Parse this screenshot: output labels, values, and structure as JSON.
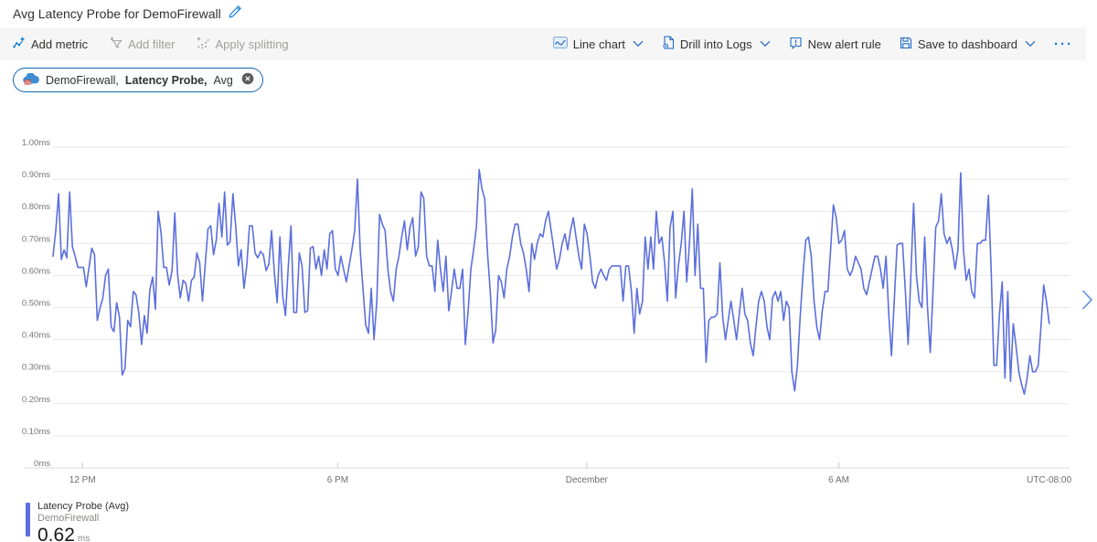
{
  "header": {
    "title": "Avg Latency Probe for DemoFirewall"
  },
  "toolbar": {
    "left": [
      {
        "label": "Add metric",
        "icon": "add-metric-icon",
        "enabled": true
      },
      {
        "label": "Add filter",
        "icon": "add-filter-icon",
        "enabled": false
      },
      {
        "label": "Apply splitting",
        "icon": "apply-splitting-icon",
        "enabled": false
      }
    ],
    "right": [
      {
        "label": "Line chart",
        "icon": "line-chart-icon",
        "has_dropdown": true
      },
      {
        "label": "Drill into Logs",
        "icon": "drill-logs-icon",
        "has_dropdown": true
      },
      {
        "label": "New alert rule",
        "icon": "new-alert-icon",
        "has_dropdown": false
      },
      {
        "label": "Save to dashboard",
        "icon": "save-icon",
        "has_dropdown": true
      }
    ],
    "more_label": "···"
  },
  "metric_pill": {
    "resource": "DemoFirewall,",
    "metric": "Latency Probe,",
    "aggregation": "Avg"
  },
  "legend": {
    "series": "Latency Probe (Avg)",
    "resource": "DemoFirewall",
    "value": "0.62",
    "unit": "ms",
    "color": "#5c6fdd"
  },
  "chart_data": {
    "type": "line",
    "title": "Avg Latency Probe for DemoFirewall",
    "unit": "ms",
    "ylabel": "",
    "xlabel": "",
    "ylim": [
      0,
      1.0
    ],
    "grid": true,
    "legend_position": "bottom-left",
    "line_color": "#5c6fdd",
    "grid_color": "#e8e8e8",
    "axis_color": "#d8d8d8",
    "tick_label_color": "#767574",
    "yticks": [
      {
        "label": "1.00ms",
        "value": 1.0
      },
      {
        "label": "0.90ms",
        "value": 0.9
      },
      {
        "label": "0.80ms",
        "value": 0.8
      },
      {
        "label": "0.70ms",
        "value": 0.7
      },
      {
        "label": "0.60ms",
        "value": 0.6
      },
      {
        "label": "0.50ms",
        "value": 0.5
      },
      {
        "label": "0.40ms",
        "value": 0.4
      },
      {
        "label": "0.30ms",
        "value": 0.3
      },
      {
        "label": "0.20ms",
        "value": 0.2
      },
      {
        "label": "0.10ms",
        "value": 0.1
      },
      {
        "label": "0ms",
        "value": 0.0
      }
    ],
    "xticks": [
      {
        "label": "12 PM",
        "pos": 0.029
      },
      {
        "label": "6 PM",
        "pos": 0.28
      },
      {
        "label": "December",
        "pos": 0.525
      },
      {
        "label": "6 AM",
        "pos": 0.773
      }
    ],
    "x_axis_right_label": "UTC-08:00",
    "series_name": "Latency Probe (Avg)",
    "resource": "DemoFirewall",
    "aggregation": "Avg",
    "x_end_frac": 0.98,
    "values_ms": [
      0.66,
      0.74,
      0.855,
      0.65,
      0.68,
      0.655,
      0.86,
      0.69,
      0.66,
      0.625,
      0.625,
      0.625,
      0.565,
      0.625,
      0.685,
      0.665,
      0.46,
      0.5,
      0.53,
      0.6,
      0.62,
      0.44,
      0.425,
      0.515,
      0.47,
      0.29,
      0.31,
      0.46,
      0.44,
      0.55,
      0.54,
      0.485,
      0.385,
      0.475,
      0.42,
      0.555,
      0.595,
      0.495,
      0.8,
      0.735,
      0.625,
      0.625,
      0.57,
      0.615,
      0.795,
      0.605,
      0.53,
      0.585,
      0.575,
      0.52,
      0.585,
      0.595,
      0.67,
      0.64,
      0.52,
      0.635,
      0.745,
      0.755,
      0.665,
      0.71,
      0.825,
      0.72,
      0.86,
      0.695,
      0.705,
      0.855,
      0.755,
      0.63,
      0.68,
      0.56,
      0.63,
      0.755,
      0.755,
      0.67,
      0.655,
      0.675,
      0.665,
      0.615,
      0.635,
      0.74,
      0.605,
      0.515,
      0.72,
      0.535,
      0.475,
      0.625,
      0.755,
      0.485,
      0.485,
      0.67,
      0.63,
      0.485,
      0.49,
      0.685,
      0.69,
      0.62,
      0.66,
      0.6,
      0.68,
      0.62,
      0.73,
      0.74,
      0.62,
      0.6,
      0.66,
      0.62,
      0.58,
      0.63,
      0.68,
      0.74,
      0.9,
      0.68,
      0.56,
      0.445,
      0.42,
      0.56,
      0.4,
      0.52,
      0.79,
      0.76,
      0.74,
      0.62,
      0.55,
      0.52,
      0.62,
      0.66,
      0.72,
      0.77,
      0.68,
      0.75,
      0.78,
      0.66,
      0.69,
      0.86,
      0.84,
      0.66,
      0.63,
      0.63,
      0.55,
      0.71,
      0.62,
      0.55,
      0.66,
      0.49,
      0.55,
      0.62,
      0.56,
      0.56,
      0.62,
      0.385,
      0.49,
      0.62,
      0.68,
      0.75,
      0.93,
      0.87,
      0.84,
      0.67,
      0.55,
      0.39,
      0.43,
      0.6,
      0.58,
      0.53,
      0.62,
      0.66,
      0.72,
      0.76,
      0.76,
      0.7,
      0.67,
      0.62,
      0.55,
      0.7,
      0.65,
      0.7,
      0.73,
      0.72,
      0.77,
      0.8,
      0.74,
      0.68,
      0.62,
      0.65,
      0.7,
      0.73,
      0.68,
      0.74,
      0.78,
      0.72,
      0.66,
      0.62,
      0.76,
      0.73,
      0.66,
      0.58,
      0.56,
      0.6,
      0.62,
      0.6,
      0.585,
      0.62,
      0.63,
      0.63,
      0.63,
      0.63,
      0.52,
      0.63,
      0.63,
      0.55,
      0.42,
      0.56,
      0.48,
      0.52,
      0.72,
      0.62,
      0.72,
      0.62,
      0.8,
      0.7,
      0.72,
      0.64,
      0.52,
      0.75,
      0.8,
      0.53,
      0.63,
      0.7,
      0.8,
      0.58,
      0.7,
      0.87,
      0.6,
      0.76,
      0.56,
      0.56,
      0.33,
      0.46,
      0.47,
      0.47,
      0.48,
      0.64,
      0.47,
      0.4,
      0.46,
      0.52,
      0.46,
      0.4,
      0.48,
      0.56,
      0.48,
      0.46,
      0.39,
      0.35,
      0.44,
      0.52,
      0.55,
      0.52,
      0.44,
      0.4,
      0.53,
      0.55,
      0.52,
      0.55,
      0.46,
      0.52,
      0.5,
      0.3,
      0.24,
      0.32,
      0.47,
      0.6,
      0.71,
      0.72,
      0.66,
      0.52,
      0.44,
      0.4,
      0.49,
      0.55,
      0.55,
      0.68,
      0.82,
      0.78,
      0.7,
      0.71,
      0.74,
      0.62,
      0.6,
      0.62,
      0.66,
      0.64,
      0.62,
      0.56,
      0.54,
      0.58,
      0.62,
      0.66,
      0.66,
      0.62,
      0.56,
      0.66,
      0.48,
      0.35,
      0.52,
      0.695,
      0.7,
      0.7,
      0.55,
      0.385,
      0.6,
      0.825,
      0.6,
      0.52,
      0.5,
      0.72,
      0.5,
      0.36,
      0.55,
      0.75,
      0.77,
      0.855,
      0.73,
      0.7,
      0.72,
      0.68,
      0.62,
      0.68,
      0.92,
      0.68,
      0.585,
      0.62,
      0.55,
      0.53,
      0.7,
      0.7,
      0.71,
      0.71,
      0.85,
      0.62,
      0.32,
      0.32,
      0.48,
      0.58,
      0.28,
      0.55,
      0.27,
      0.45,
      0.38,
      0.3,
      0.26,
      0.23,
      0.28,
      0.35,
      0.3,
      0.3,
      0.32,
      0.44,
      0.57,
      0.52,
      0.45
    ]
  }
}
